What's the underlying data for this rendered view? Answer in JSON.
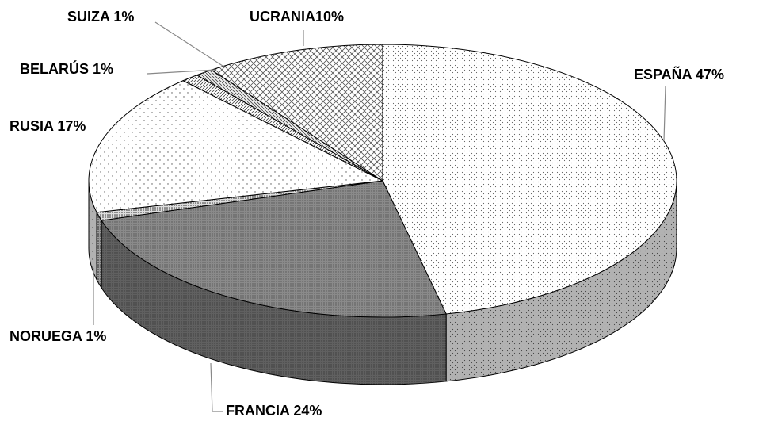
{
  "chart_data": {
    "type": "pie",
    "categories": [
      "ESPAÑA 47%",
      "FRANCIA 24%",
      "NORUEGA 1%",
      "RUSIA 17%",
      "BELARÚS 1%",
      "SUIZA 1%",
      "UCRANIA10%"
    ],
    "values": [
      47,
      24,
      1,
      17,
      1,
      1,
      10
    ]
  }
}
